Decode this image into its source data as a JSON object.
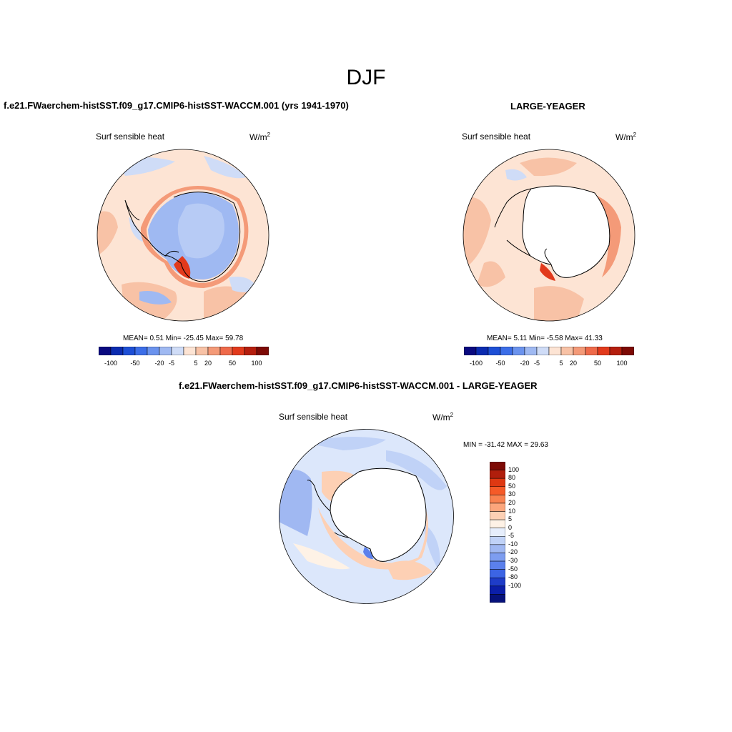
{
  "title": "DJF",
  "panels": [
    {
      "id": "left",
      "title": "f.e21.FWaerchem-histSST.f09_g17.CMIP6-histSST-WACCM.001 (yrs 1941-1970)",
      "subtitle": "Surf sensible heat",
      "units_base": "W/m",
      "units_exp": "2",
      "stats": "MEAN=   0.51  Min= -25.45  Max=  59.78"
    },
    {
      "id": "right",
      "title": "LARGE-YEAGER",
      "subtitle": "Surf sensible heat",
      "units_base": "W/m",
      "units_exp": "2",
      "stats": "MEAN=   5.11  Min=  -5.58  Max=  41.33"
    },
    {
      "id": "diff",
      "title": "f.e21.FWaerchem-histSST.f09_g17.CMIP6-histSST-WACCM.001 - LARGE-YEAGER",
      "subtitle": "Surf sensible heat",
      "units_base": "W/m",
      "units_exp": "2",
      "stats": "MIN = -31.42 MAX =  29.63"
    }
  ],
  "horizontal_colorbar": {
    "colors": [
      "#0a0a80",
      "#0b2bb0",
      "#1d4fd6",
      "#3c6ee8",
      "#6b93ee",
      "#9fb9f2",
      "#cfdcf7",
      "#fde4d4",
      "#f8c2a6",
      "#f49a78",
      "#ef6a4a",
      "#e23a1c",
      "#b51e0e",
      "#7d0a05"
    ],
    "tick_labels": [
      "-100",
      "-50",
      "-20",
      "-5",
      "5",
      "20",
      "50",
      "100"
    ]
  },
  "vertical_colorbar": {
    "colors": [
      "#7d0a05",
      "#b01e0c",
      "#de3812",
      "#f55a28",
      "#f98250",
      "#fca67c",
      "#fdd0b4",
      "#fef2e6",
      "#e6eefc",
      "#c0d2f7",
      "#a0b8f2",
      "#7d9df0",
      "#5b80ec",
      "#3c64e4",
      "#1e3cc8",
      "#0b1ea8",
      "#06117a"
    ],
    "tick_labels": [
      "100",
      "80",
      "50",
      "30",
      "20",
      "10",
      "5",
      "0",
      "-5",
      "-10",
      "-20",
      "-30",
      "-50",
      "-80",
      "-100"
    ]
  }
}
